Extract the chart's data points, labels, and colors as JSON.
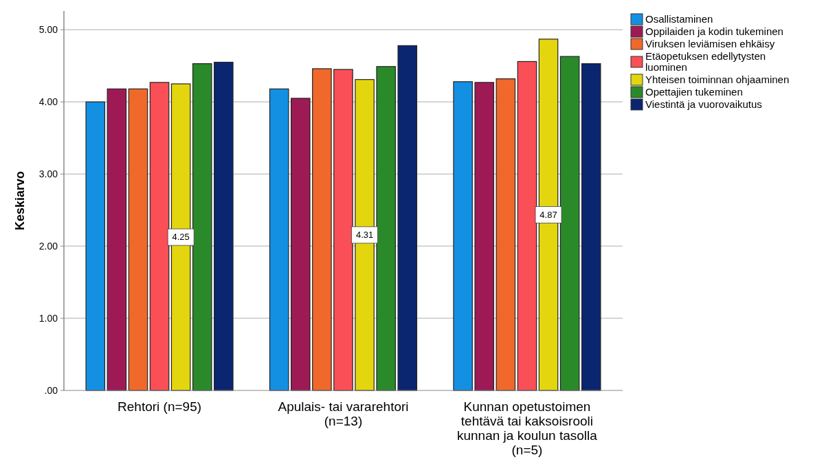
{
  "chart_data": {
    "type": "bar",
    "ylabel": "Keskiarvo",
    "categories": [
      "Rehtori (n=95)",
      "Apulais- tai vararehtori (n=13)",
      "Kunnan opetustoimen tehtävä tai kaksoisrooli kunnan ja koulun tasolla (n=5)"
    ],
    "series": [
      {
        "name": "Osallistaminen",
        "color": "#1490e3",
        "values": [
          4.0,
          4.18,
          4.28
        ]
      },
      {
        "name": "Oppilaiden ja kodin tukeminen",
        "color": "#9e1a55",
        "values": [
          4.18,
          4.05,
          4.27
        ]
      },
      {
        "name": "Viruksen leviämisen ehkäisy",
        "color": "#f0682a",
        "values": [
          4.18,
          4.46,
          4.32
        ]
      },
      {
        "name": "Etäopetuksen edellytysten luominen",
        "color": "#fa4f56",
        "values": [
          4.27,
          4.45,
          4.56
        ]
      },
      {
        "name": "Yhteisen toiminnan ohjaaminen",
        "color": "#e3d60f",
        "values": [
          4.25,
          4.31,
          4.87
        ],
        "value_labels": [
          "4.25",
          "4.31",
          "4.87"
        ]
      },
      {
        "name": "Opettajien tukeminen",
        "color": "#2a8a2a",
        "values": [
          4.53,
          4.49,
          4.63
        ]
      },
      {
        "name": "Viestintä ja vuorovaikutus",
        "color": "#0b2670",
        "values": [
          4.55,
          4.78,
          4.53
        ]
      }
    ],
    "ylim": [
      0,
      5.26
    ],
    "yticks": [
      {
        "value": 0,
        "label": ".00"
      },
      {
        "value": 1,
        "label": "1.00"
      },
      {
        "value": 2,
        "label": "2.00"
      },
      {
        "value": 3,
        "label": "3.00"
      },
      {
        "value": 4,
        "label": "4.00"
      },
      {
        "value": 5,
        "label": "5.00"
      }
    ],
    "grid": "y",
    "legend": "right"
  }
}
